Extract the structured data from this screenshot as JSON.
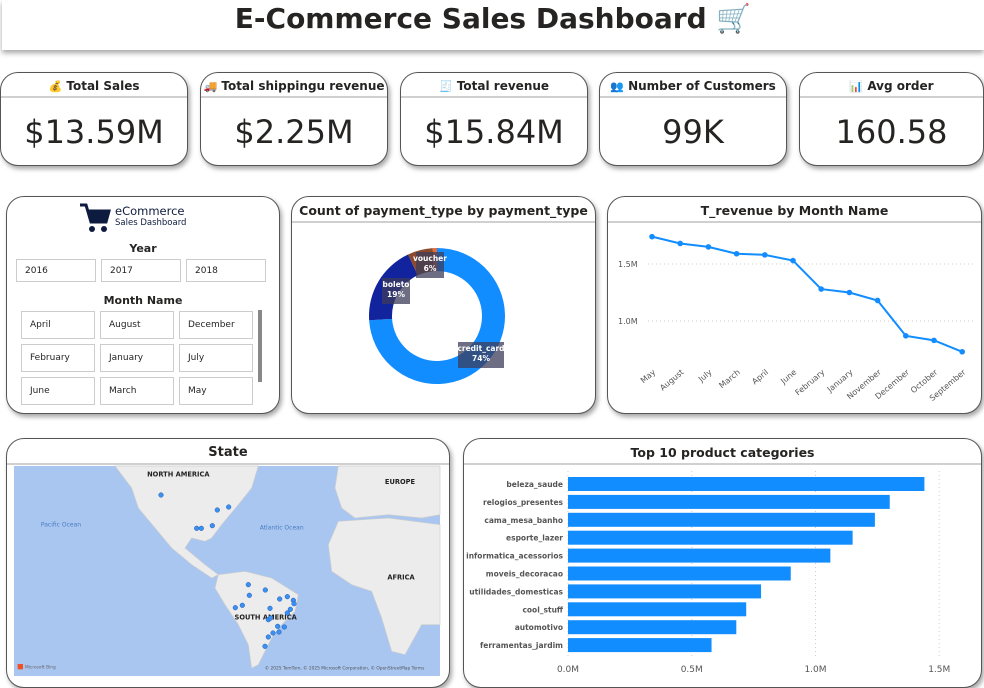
{
  "header": {
    "title": "E-Commerce Sales Dashboard",
    "icon": "shopping-cart-icon"
  },
  "kpis": [
    {
      "label": "Total Sales",
      "value": "$13.59M",
      "icon": "money-bag-icon"
    },
    {
      "label": "Total shippingu revenue",
      "value": "$2.25M",
      "icon": "truck-icon"
    },
    {
      "label": "Total revenue",
      "value": "$15.84M",
      "icon": "cash-register-icon"
    },
    {
      "label": "Number of Customers",
      "value": "99K",
      "icon": "customers-icon"
    },
    {
      "label": "Avg order",
      "value": "160.58",
      "icon": "bar-chart-icon"
    }
  ],
  "slicer": {
    "logo_title": "eCommerce",
    "logo_subtitle": "Sales Dashboard",
    "year_label": "Year",
    "years": [
      "2016",
      "2017",
      "2018"
    ],
    "month_label": "Month Name",
    "months": [
      "April",
      "August",
      "December",
      "February",
      "January",
      "July",
      "June",
      "March",
      "May"
    ]
  },
  "map": {
    "title": "State",
    "labels": {
      "na": "NORTH AMERICA",
      "eu": "EUROPE",
      "af": "AFRICA",
      "sa": "SOUTH AMERICA",
      "pacific": "Pacific Ocean",
      "atlantic": "Atlantic Ocean"
    },
    "bing": "Microsoft Bing",
    "attribution": "© 2025 TomTom, © 2025 Microsoft Corporation, © OpenStreetMap  Terms",
    "colors": {
      "water": "#a9c6f0",
      "land": "#ececec",
      "dot": "#3d8ff0"
    }
  },
  "chart_data": [
    {
      "type": "pie",
      "title": "Count of payment_type by payment_type",
      "labels": [
        "credit_card",
        "boleto",
        "voucher",
        ""
      ],
      "values": [
        74,
        19,
        6,
        1
      ],
      "colors": [
        "#118dff",
        "#12239e",
        "#8a4a2b",
        "#e66c37"
      ]
    },
    {
      "type": "line",
      "title": "T_revenue by Month Name",
      "categories": [
        "May",
        "August",
        "July",
        "March",
        "April",
        "June",
        "February",
        "January",
        "November",
        "December",
        "October",
        "September"
      ],
      "values": [
        1.74,
        1.68,
        1.65,
        1.59,
        1.58,
        1.53,
        1.28,
        1.25,
        1.18,
        0.87,
        0.83,
        0.73
      ],
      "yticks": [
        "1.0M",
        "1.5M"
      ],
      "ytick_values": [
        1.0,
        1.5
      ],
      "unit": "M",
      "ylim": [
        0.6,
        1.8
      ],
      "grid": true,
      "color": "#118dff"
    },
    {
      "type": "bar",
      "orientation": "horizontal",
      "title": "Top 10 product categories",
      "categories": [
        "beleza_saude",
        "relogios_presentes",
        "cama_mesa_banho",
        "esporte_lazer",
        "informatica_acessorios",
        "moveis_decoracao",
        "utilidades_domesticas",
        "cool_stuff",
        "automotivo",
        "ferramentas_jardim"
      ],
      "values": [
        1.44,
        1.3,
        1.24,
        1.15,
        1.06,
        0.9,
        0.78,
        0.72,
        0.68,
        0.58
      ],
      "xticks": [
        "0.0M",
        "0.5M",
        "1.0M",
        "1.5M"
      ],
      "xtick_values": [
        0,
        0.5,
        1.0,
        1.5
      ],
      "xlim": [
        0,
        1.55
      ],
      "grid": true,
      "color": "#118dff"
    }
  ]
}
